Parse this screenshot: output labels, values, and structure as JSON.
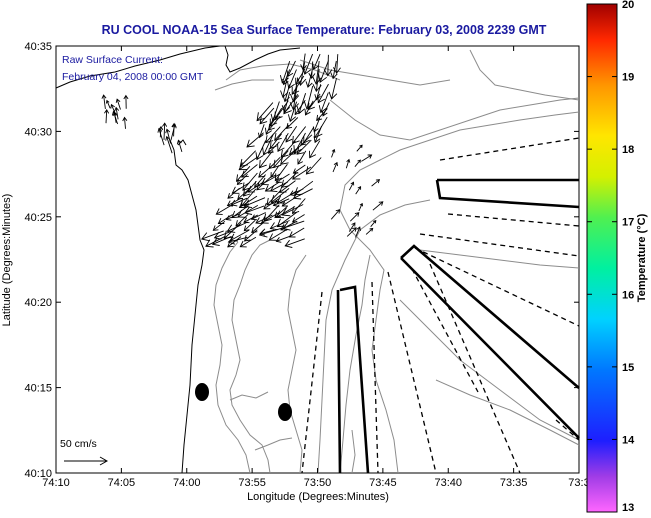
{
  "title": "RU COOL  NOAA-15  Sea Surface Temperature:  February 03, 2008 2239 GMT",
  "annotation": {
    "line1": "Raw Surface Current:",
    "line2": "February 04, 2008 00:00 GMT"
  },
  "axes": {
    "xlabel": "Longitude (Degrees:Minutes)",
    "ylabel": "Latitude (Degrees:Minutes)",
    "x_ticks": [
      "74:10",
      "74:05",
      "74:00",
      "73:55",
      "73:50",
      "73:45",
      "73:40",
      "73:35",
      "73:3"
    ],
    "y_ticks": [
      "40:35",
      "40:30",
      "40:25",
      "40:20",
      "40:15",
      "40:10"
    ]
  },
  "colorbar": {
    "label": "Temperature (°C)",
    "ticks": [
      "20",
      "19",
      "18",
      "17",
      "16",
      "15",
      "14",
      "13"
    ]
  },
  "scale": {
    "label": "50 cm/s"
  },
  "colors": {
    "title": "#1a1aa0",
    "land_outline": "#000000",
    "bathymetry": "#8c8c8c"
  }
}
